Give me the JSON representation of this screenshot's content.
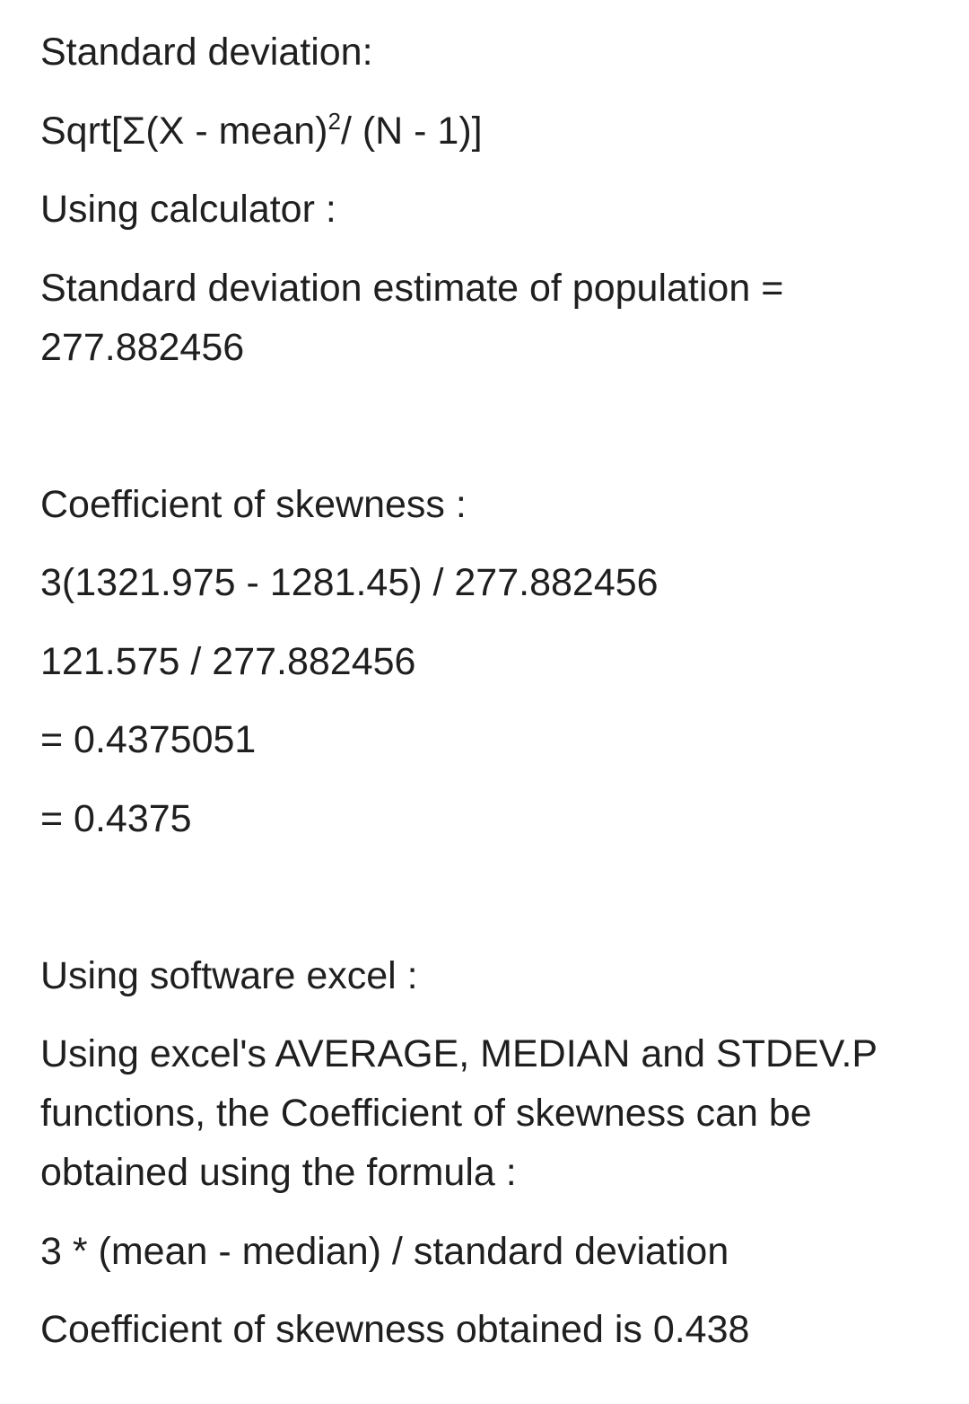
{
  "document": {
    "section1": {
      "heading": "Standard deviation:",
      "formula_prefix": "Sqrt[Σ(X - mean)",
      "formula_sup": "2",
      "formula_suffix": "/ (N - 1)]",
      "calc_label": "Using calculator :",
      "result": "Standard deviation estimate of population = 277.882456"
    },
    "section2": {
      "heading": "Coefficient of skewness :",
      "steps": [
        "3(1321.975 - 1281.45) / 277.882456",
        "121.575 / 277.882456",
        "= 0.4375051",
        "= 0.4375"
      ]
    },
    "section3": {
      "heading": "Using software excel :",
      "description": "Using excel's AVERAGE, MEDIAN and STDEV.P functions, the Coefficient of skewness can be obtained using the formula :",
      "formula": "3 * (mean - median) / standard deviation",
      "result": "Coefficient of skewness obtained is 0.438"
    }
  }
}
